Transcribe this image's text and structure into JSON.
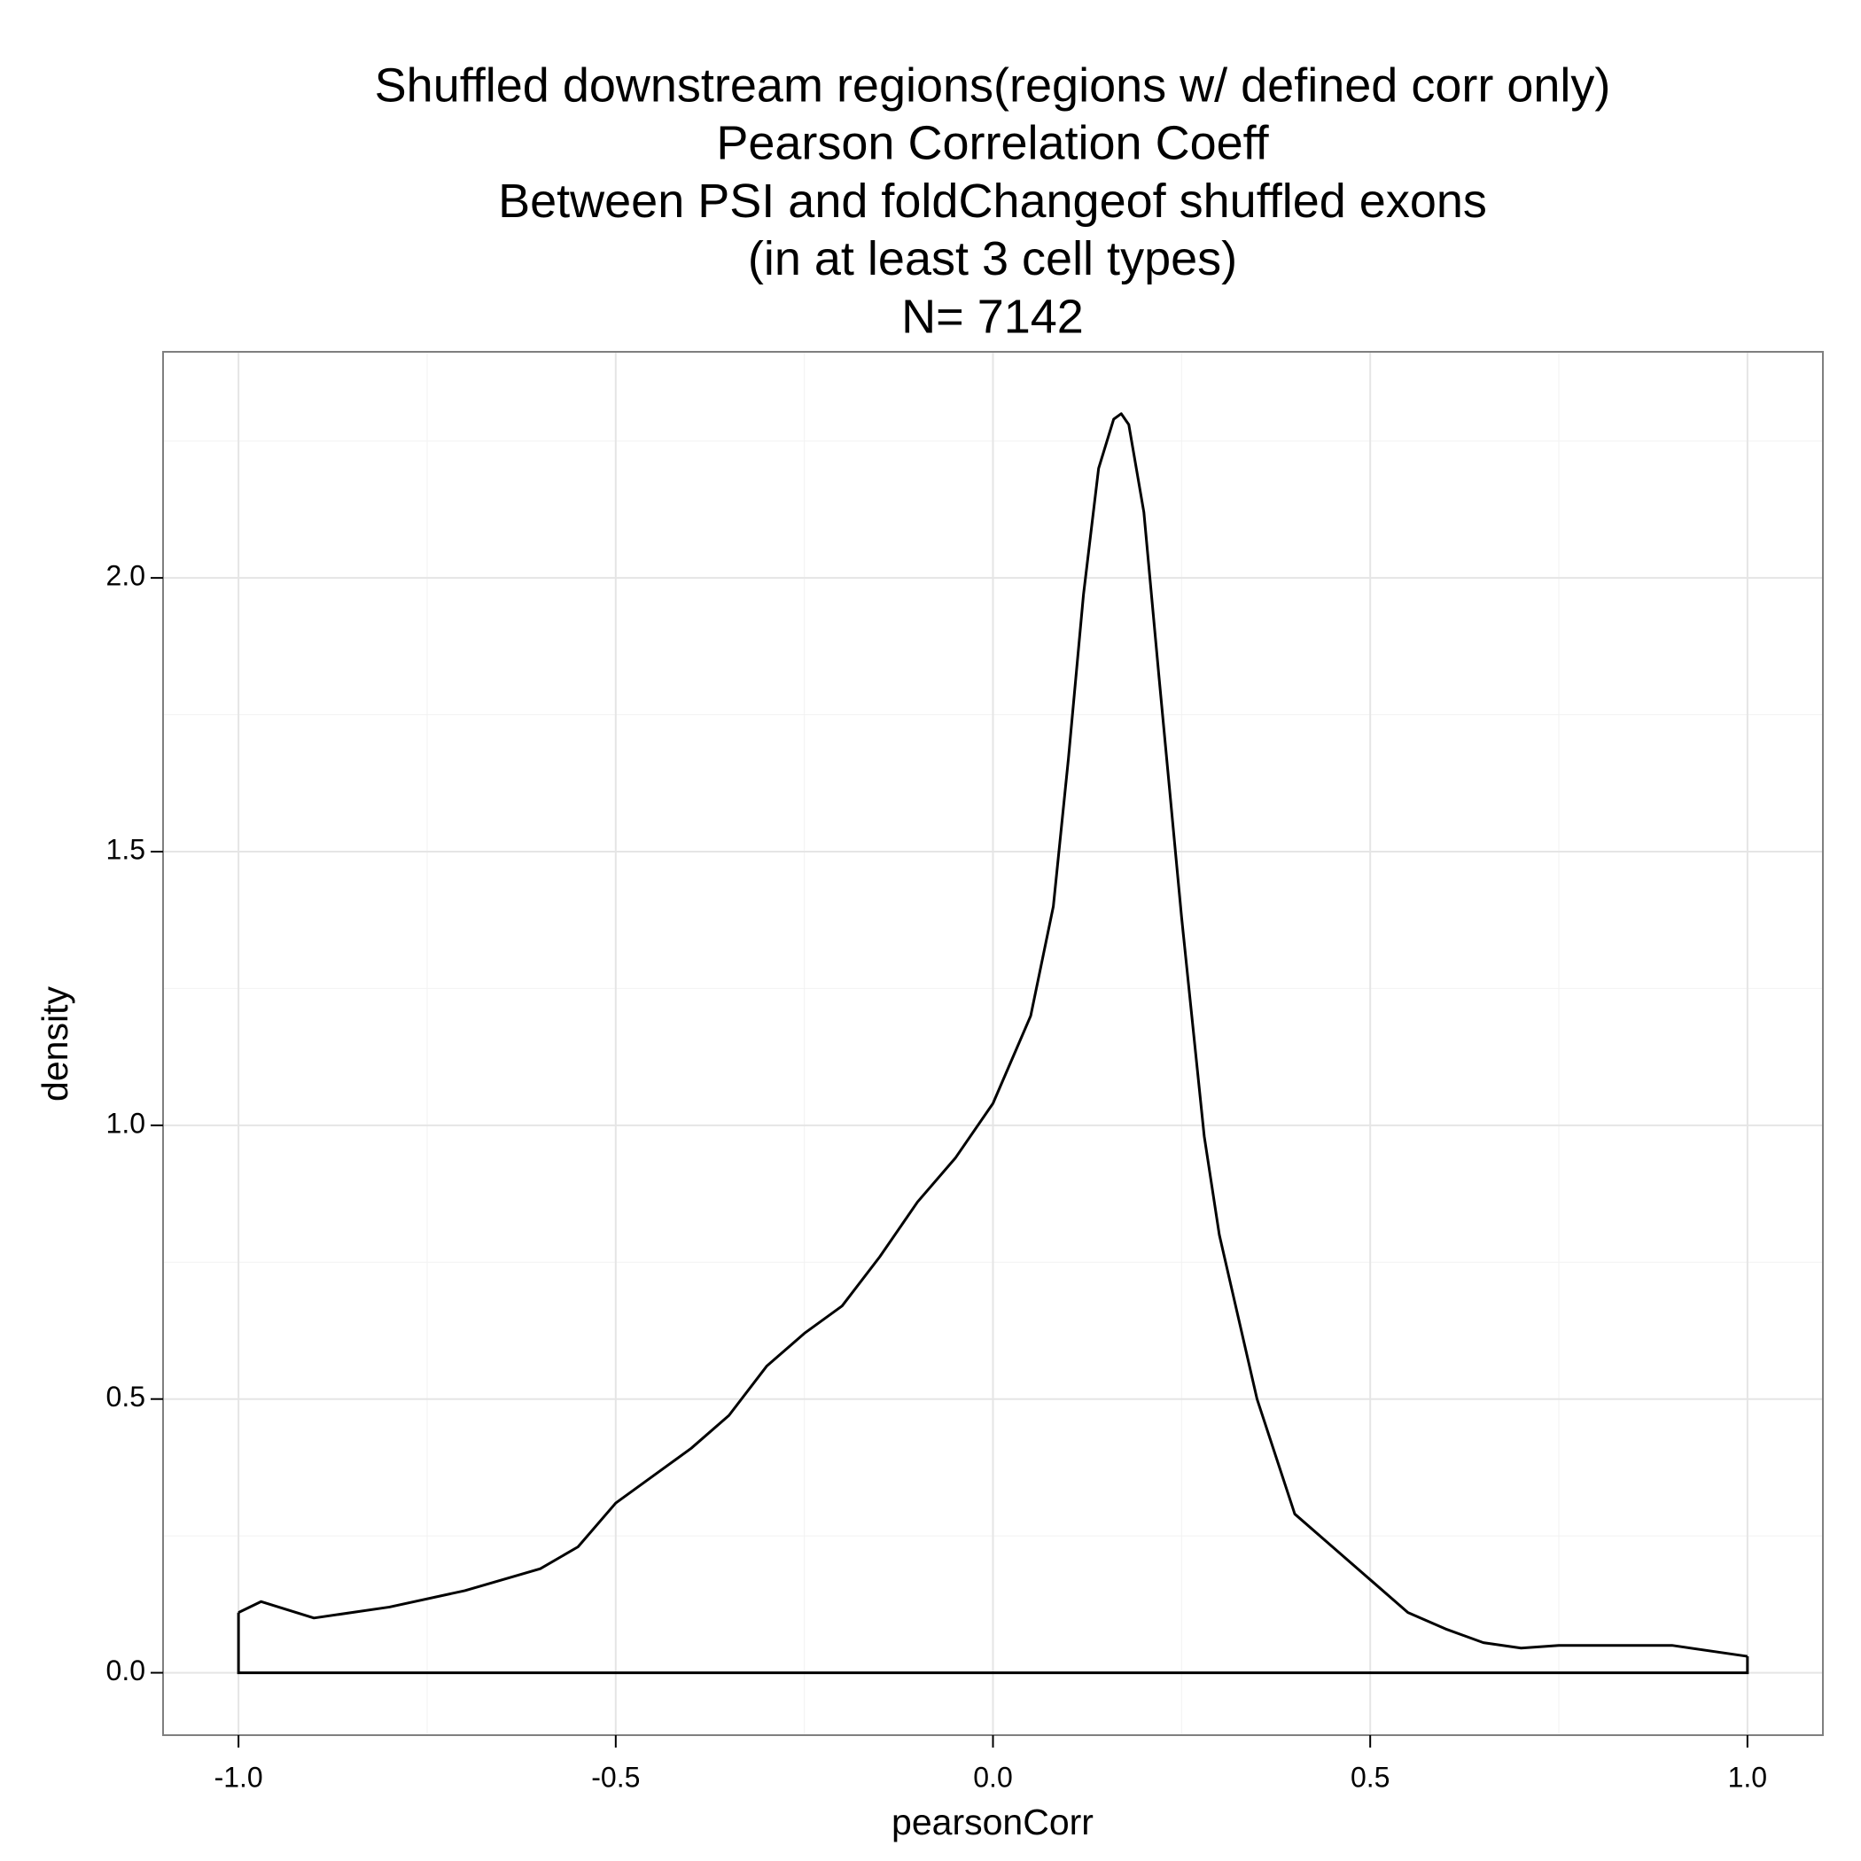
{
  "chart_data": {
    "type": "line",
    "title": [
      "Shuffled downstream regions(regions w/ defined corr only)",
      "Pearson Correlation Coeff",
      "Between PSI and foldChangeof shuffled exons",
      "(in at least 3 cell types)",
      "N= 7142"
    ],
    "x_label": "pearsonCorr",
    "y_label": "density",
    "x": [
      -1.0,
      -0.97,
      -0.9,
      -0.8,
      -0.7,
      -0.6,
      -0.55,
      -0.5,
      -0.45,
      -0.4,
      -0.35,
      -0.3,
      -0.25,
      -0.2,
      -0.15,
      -0.1,
      -0.05,
      0.0,
      0.05,
      0.08,
      0.1,
      0.12,
      0.14,
      0.16,
      0.17,
      0.18,
      0.2,
      0.22,
      0.25,
      0.28,
      0.3,
      0.35,
      0.4,
      0.45,
      0.5,
      0.55,
      0.6,
      0.65,
      0.7,
      0.75,
      0.8,
      0.9,
      1.0
    ],
    "series": [
      {
        "name": "density",
        "color": "#000000",
        "values": [
          0.11,
          0.13,
          0.1,
          0.12,
          0.15,
          0.19,
          0.23,
          0.31,
          0.36,
          0.41,
          0.47,
          0.56,
          0.62,
          0.67,
          0.76,
          0.86,
          0.94,
          1.04,
          1.2,
          1.4,
          1.67,
          1.97,
          2.2,
          2.29,
          2.3,
          2.28,
          2.12,
          1.82,
          1.38,
          0.98,
          0.8,
          0.5,
          0.29,
          0.23,
          0.17,
          0.11,
          0.08,
          0.055,
          0.045,
          0.05,
          0.05,
          0.05,
          0.03
        ]
      }
    ],
    "xlim": [
      -1.1,
      1.1
    ],
    "ylim": [
      -0.114,
      2.413
    ],
    "xticks": [
      {
        "value": -1.0,
        "label": "-1.0"
      },
      -0.5,
      {
        "value": 0.0,
        "label": "0.0"
      },
      0.5,
      {
        "value": 1.0,
        "label": "1.0"
      }
    ],
    "yticks": [
      {
        "value": 0.0,
        "label": "0.0"
      },
      0.5,
      {
        "value": 1.0,
        "label": "1.0"
      },
      1.5,
      {
        "value": 2.0,
        "label": "2.0"
      }
    ],
    "grid": true
  }
}
